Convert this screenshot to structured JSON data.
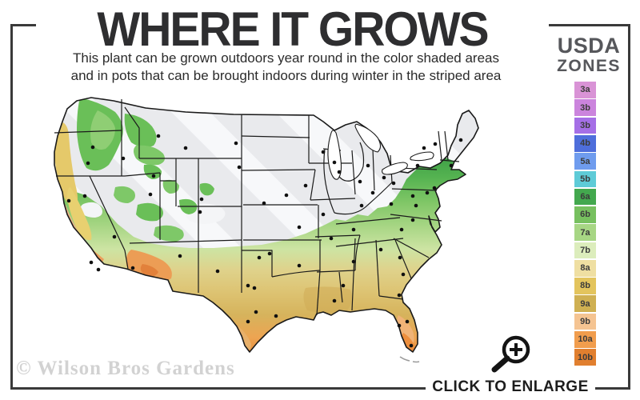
{
  "header": {
    "title": "WHERE IT GROWS",
    "subtitle_line1": "This plant can be grown outdoors year round in the color shaded areas",
    "subtitle_line2": "and in pots that can be brought indoors during winter in the striped area"
  },
  "legend": {
    "heading_line1": "USDA",
    "heading_line2": "ZONES",
    "zones": [
      {
        "label": "3a",
        "color": "#d993d6"
      },
      {
        "label": "3b",
        "color": "#cb84dd"
      },
      {
        "label": "3b",
        "color": "#a56fe6"
      },
      {
        "label": "4b",
        "color": "#4e6edb"
      },
      {
        "label": "5a",
        "color": "#6f9cee"
      },
      {
        "label": "5b",
        "color": "#5ecbd7"
      },
      {
        "label": "6a",
        "color": "#43a84e"
      },
      {
        "label": "6b",
        "color": "#77c05f"
      },
      {
        "label": "7a",
        "color": "#a7d684"
      },
      {
        "label": "7b",
        "color": "#dcedbc"
      },
      {
        "label": "8a",
        "color": "#efdfa2"
      },
      {
        "label": "8b",
        "color": "#e3c45d"
      },
      {
        "label": "9a",
        "color": "#cfb052"
      },
      {
        "label": "9b",
        "color": "#f5c492"
      },
      {
        "label": "10a",
        "color": "#f19d4d"
      },
      {
        "label": "10b",
        "color": "#e17f2f"
      }
    ]
  },
  "map": {
    "region": "Contiguous United States",
    "shaded_meaning": "grows outdoors year round",
    "striped_meaning": "bring pots indoors during winter"
  },
  "watermark": "© Wilson Bros Gardens",
  "footer": {
    "enlarge_label": "CLICK TO ENLARGE"
  }
}
